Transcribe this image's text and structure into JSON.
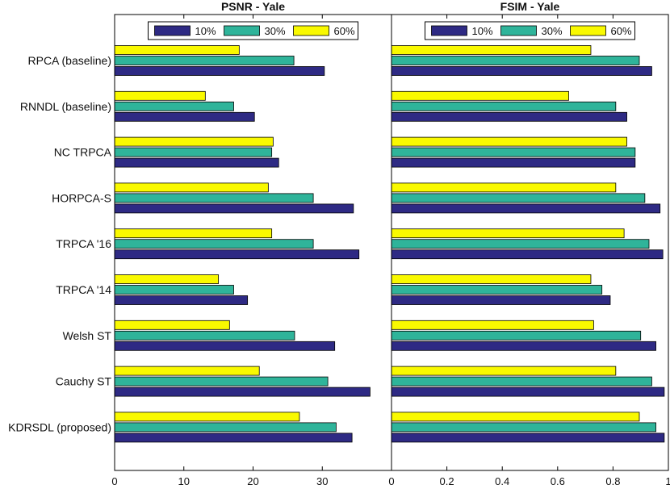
{
  "chart_data": [
    {
      "type": "bar",
      "orientation": "horizontal",
      "title": "PSNR - Yale",
      "xlabel": "",
      "ylabel": "",
      "xlim": [
        0,
        40
      ],
      "xticks": [
        0,
        10,
        20,
        30
      ],
      "categories": [
        "RPCA (baseline)",
        "RNNDL (baseline)",
        "NC TRPCA",
        "HORPCA-S",
        "TRPCA '16",
        "TRPCA '14",
        "Welsh ST",
        "Cauchy ST",
        "KDRSDL (proposed)"
      ],
      "series": [
        {
          "name": "10%",
          "color": "#2e2a84",
          "values": [
            30.3,
            20.2,
            23.7,
            34.5,
            35.3,
            19.2,
            31.8,
            36.9,
            34.3
          ]
        },
        {
          "name": "30%",
          "color": "#2fb49a",
          "values": [
            25.9,
            17.2,
            22.7,
            28.7,
            28.7,
            17.2,
            26.0,
            30.8,
            32.0
          ]
        },
        {
          "name": "60%",
          "color": "#f9f900",
          "values": [
            18.0,
            13.1,
            22.9,
            22.2,
            22.7,
            15.0,
            16.6,
            20.9,
            26.7
          ]
        }
      ],
      "legend": {
        "position": "top",
        "orientation": "horizontal"
      }
    },
    {
      "type": "bar",
      "orientation": "horizontal",
      "title": "FSIM - Yale",
      "xlabel": "",
      "ylabel": "",
      "xlim": [
        0,
        1
      ],
      "xticks": [
        0,
        0.2,
        0.4,
        0.6,
        0.8,
        1
      ],
      "categories": [
        "RPCA (baseline)",
        "RNNDL (baseline)",
        "NC TRPCA",
        "HORPCA-S",
        "TRPCA '16",
        "TRPCA '14",
        "Welsh ST",
        "Cauchy ST",
        "KDRSDL (proposed)"
      ],
      "series": [
        {
          "name": "10%",
          "color": "#2e2a84",
          "values": [
            0.94,
            0.85,
            0.88,
            0.97,
            0.98,
            0.79,
            0.955,
            0.985,
            0.985
          ]
        },
        {
          "name": "30%",
          "color": "#2fb49a",
          "values": [
            0.895,
            0.81,
            0.88,
            0.915,
            0.93,
            0.76,
            0.9,
            0.94,
            0.955
          ]
        },
        {
          "name": "60%",
          "color": "#f9f900",
          "values": [
            0.72,
            0.64,
            0.85,
            0.81,
            0.84,
            0.72,
            0.73,
            0.81,
            0.895
          ]
        }
      ],
      "legend": {
        "position": "top",
        "orientation": "horizontal"
      }
    }
  ]
}
